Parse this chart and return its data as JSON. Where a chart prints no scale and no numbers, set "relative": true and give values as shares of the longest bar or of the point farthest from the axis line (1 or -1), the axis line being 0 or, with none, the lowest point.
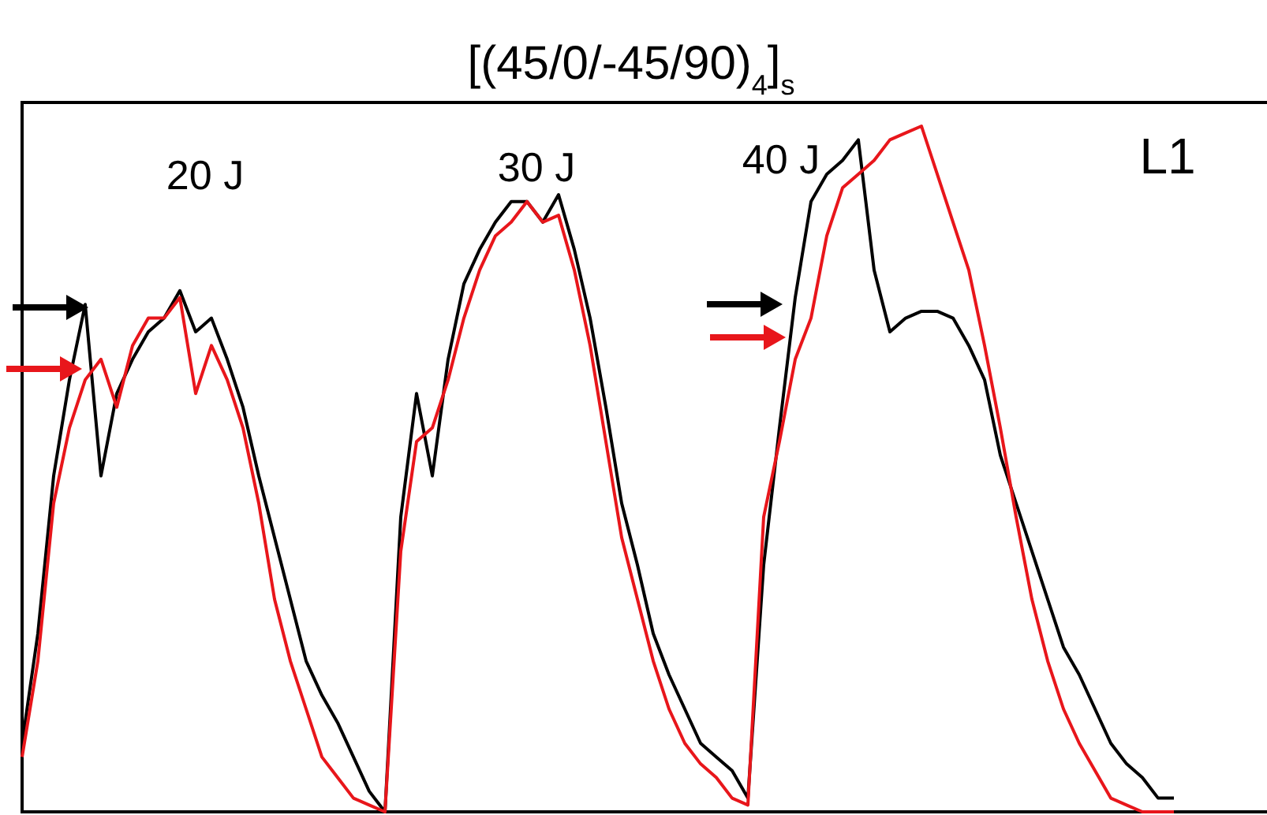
{
  "chart_data": {
    "type": "line",
    "relative": true,
    "title": "[(45/0/-45/90)$_{4}$]$_{s}$",
    "annotations": [
      "20 J",
      "30 J",
      "40 J",
      "L1"
    ],
    "categories": [
      null,
      null,
      null,
      null,
      null,
      null,
      null,
      null,
      null,
      null,
      null,
      null,
      null,
      null,
      null,
      null,
      null,
      null,
      null,
      null,
      null,
      null,
      null,
      null,
      null,
      null,
      null,
      null,
      null,
      null,
      null,
      null,
      null,
      null,
      null,
      null,
      null,
      null,
      null,
      null,
      null,
      null,
      null,
      null,
      null,
      null,
      null,
      null,
      null,
      null,
      null,
      null,
      null,
      null,
      null,
      null,
      null,
      null,
      null,
      null,
      null,
      null,
      null,
      null,
      null,
      null,
      null,
      null,
      null,
      null,
      null,
      null,
      null,
      null,
      null
    ],
    "series": [
      {
        "color": "#000000",
        "values": [
          0.1,
          0.26,
          0.49,
          0.63,
          0.74,
          0.49,
          0.61,
          0.66,
          0.7,
          0.72,
          0.76,
          0.7,
          0.72,
          0.66,
          0.59,
          0.49,
          0.4,
          0.31,
          0.22,
          0.17,
          0.13,
          0.08,
          0.03,
          0,
          0.43,
          0.61,
          0.49,
          0.66,
          0.77,
          0.82,
          0.86,
          0.89,
          0.89,
          0.86,
          0.9,
          0.82,
          0.72,
          0.59,
          0.45,
          0.36,
          0.26,
          0.2,
          0.15,
          0.1,
          0.08,
          0.06,
          0.02,
          0.36,
          0.56,
          0.75,
          0.89,
          0.93,
          0.95,
          0.98,
          0.79,
          0.7,
          0.72,
          0.73,
          0.73,
          0.72,
          0.68,
          0.63,
          0.52,
          0.45,
          0.38,
          0.31,
          0.24,
          0.2,
          0.15,
          0.1,
          0.07,
          0.05,
          0.02,
          0.02,
          null
        ]
      },
      {
        "color": "#e8161b",
        "values": [
          0.08,
          0.22,
          0.45,
          0.56,
          0.63,
          0.66,
          0.59,
          0.68,
          0.72,
          0.72,
          0.75,
          0.61,
          0.68,
          0.63,
          0.56,
          0.45,
          0.31,
          0.22,
          0.15,
          0.08,
          0.05,
          0.02,
          0.01,
          0,
          0.38,
          0.54,
          0.56,
          0.63,
          0.72,
          0.79,
          0.84,
          0.86,
          0.89,
          0.86,
          0.87,
          0.79,
          0.68,
          0.54,
          0.4,
          0.31,
          0.22,
          0.15,
          0.1,
          0.07,
          0.05,
          0.02,
          0.01,
          0.43,
          0.54,
          0.66,
          0.72,
          0.84,
          0.91,
          0.93,
          0.95,
          0.98,
          0.99,
          1,
          0.93,
          0.86,
          0.79,
          0.68,
          0.56,
          0.43,
          0.31,
          0.22,
          0.15,
          0.1,
          0.06,
          0.02,
          0.01,
          0,
          0,
          0,
          null
        ]
      }
    ],
    "marker": "none",
    "line_style": "solid"
  }
}
